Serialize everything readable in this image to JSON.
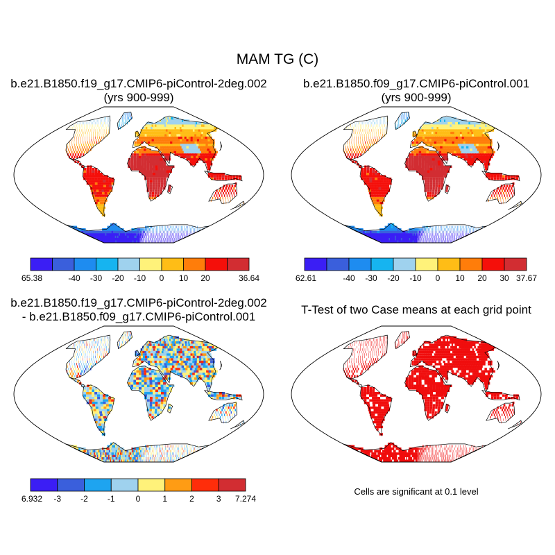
{
  "figure": {
    "title": "MAM TG (C)",
    "panels": [
      {
        "line1": "b.e21.B1850.f19_g17.CMIP6-piControl-2deg.002",
        "line2": "(yrs 900-999)",
        "colorbar": {
          "labels": [
            "-65.38",
            "-40",
            "-30",
            "-20",
            "-10",
            "0",
            "10",
            "20",
            "36.64"
          ]
        }
      },
      {
        "line1": "b.e21.B1850.f09_g17.CMIP6-piControl.001",
        "line2": "(yrs 900-999)",
        "colorbar": {
          "labels": [
            "-62.61",
            "-40",
            "-30",
            "-20",
            "-10",
            "0",
            "10",
            "20",
            "30",
            "37.67"
          ]
        }
      },
      {
        "line1": "b.e21.B1850.f19_g17.CMIP6-piControl-2deg.002",
        "line2": "- b.e21.B1850.f09_g17.CMIP6-piControl.001",
        "colorbar": {
          "labels": [
            "-6.932",
            "-3",
            "-2",
            "-1",
            "0",
            "1",
            "2",
            "3",
            "7.274"
          ]
        }
      },
      {
        "line1": "T-Test of two Case means at each grid point",
        "note": "Cells are significant at 0.1 level"
      }
    ],
    "colors": {
      "temp": [
        "#3b1ef5",
        "#3a5fdc",
        "#1e8cf0",
        "#16b4f0",
        "#9fd2ee",
        "#fff27a",
        "#ffbd16",
        "#ff7d0a",
        "#f50f0a",
        "#d22d32"
      ],
      "diff": [
        "#3b1ef5",
        "#3a5fdc",
        "#1ea4f0",
        "#9fd2ee",
        "#fff27a",
        "#ff9c14",
        "#ff2d0a",
        "#d22d32"
      ],
      "significant": "#f00d0d"
    }
  }
}
